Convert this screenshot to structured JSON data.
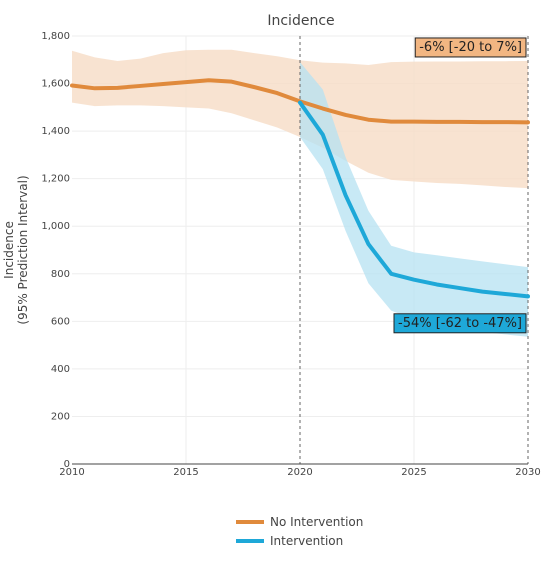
{
  "chart_data": {
    "type": "line",
    "title": "Incidence",
    "xlabel": "",
    "ylabel": [
      "Incidence",
      "(95% Prediction Interval)"
    ],
    "xlim": [
      2010,
      2030
    ],
    "ylim": [
      0,
      1800
    ],
    "x_ticks": [
      2010,
      2015,
      2020,
      2025,
      2030
    ],
    "y_ticks": [
      0,
      200,
      400,
      600,
      800,
      1000,
      1200,
      1400,
      1600,
      1800
    ],
    "y_tick_labels": [
      "0",
      "200",
      "400",
      "600",
      "800",
      "1,000",
      "1,200",
      "1,400",
      "1,600",
      "1,800"
    ],
    "grid": true,
    "vertical_reference_lines": [
      2020,
      2030
    ],
    "legend_position": "bottom",
    "series": [
      {
        "name": "No Intervention",
        "color": "#e08a3c",
        "band_color": "#f6dcc6",
        "x": [
          2010,
          2011,
          2012,
          2013,
          2014,
          2015,
          2016,
          2017,
          2018,
          2019,
          2020,
          2021,
          2022,
          2023,
          2024,
          2025,
          2026,
          2027,
          2028,
          2029,
          2030
        ],
        "y": [
          1592,
          1580,
          1582,
          1590,
          1598,
          1606,
          1614,
          1608,
          1585,
          1560,
          1525,
          1495,
          1468,
          1448,
          1440,
          1440,
          1439,
          1439,
          1438,
          1438,
          1437
        ],
        "lower": [
          1520,
          1505,
          1508,
          1508,
          1505,
          1500,
          1495,
          1475,
          1445,
          1415,
          1375,
          1330,
          1275,
          1225,
          1195,
          1188,
          1182,
          1178,
          1172,
          1165,
          1160
        ],
        "upper": [
          1738,
          1710,
          1695,
          1705,
          1728,
          1740,
          1742,
          1742,
          1728,
          1715,
          1698,
          1688,
          1685,
          1678,
          1690,
          1692,
          1693,
          1693,
          1694,
          1694,
          1695
        ]
      },
      {
        "name": "Intervention",
        "color": "#1ea8d8",
        "band_color": "#b6e1f2",
        "x": [
          2020,
          2021,
          2022,
          2023,
          2024,
          2025,
          2026,
          2027,
          2028,
          2029,
          2030
        ],
        "y": [
          1520,
          1385,
          1130,
          925,
          800,
          775,
          755,
          740,
          725,
          715,
          705
        ],
        "lower": [
          1375,
          1240,
          980,
          760,
          645,
          608,
          588,
          570,
          555,
          545,
          535
        ],
        "upper": [
          1690,
          1575,
          1290,
          1065,
          918,
          890,
          878,
          865,
          852,
          840,
          828
        ]
      }
    ],
    "annotations": [
      {
        "text": "-6% [-20 to 7%]",
        "series": "No Intervention",
        "bg": "#f2b682"
      },
      {
        "text": "-54% [-62 to -47%]",
        "series": "Intervention",
        "bg": "#1ea8d8"
      }
    ]
  }
}
